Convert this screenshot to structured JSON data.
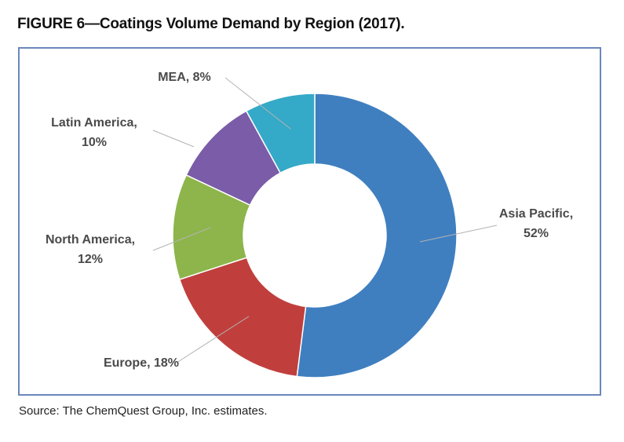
{
  "figure_title": "FIGURE 6—Coatings Volume Demand by Region (2017).",
  "source": "Source: The ChemQuest Group, Inc. estimates.",
  "chart_data": {
    "type": "pie",
    "variant": "donut",
    "title": "FIGURE 6—Coatings Volume Demand by Region (2017).",
    "unit": "%",
    "slices": [
      {
        "name": "Asia Pacific",
        "value": 52,
        "color": "#3f7fc0",
        "label_lines": [
          "Asia Pacific,",
          "52%"
        ]
      },
      {
        "name": "Europe",
        "value": 18,
        "color": "#c03f3c",
        "label_lines": [
          "Europe, 18%"
        ]
      },
      {
        "name": "North America",
        "value": 12,
        "color": "#8db54b",
        "label_lines": [
          "North America,",
          "12%"
        ]
      },
      {
        "name": "Latin America",
        "value": 10,
        "color": "#7a5ca8",
        "label_lines": [
          "Latin America,",
          "10%"
        ]
      },
      {
        "name": "MEA",
        "value": 8,
        "color": "#35a9c8",
        "label_lines": [
          "MEA, 8%"
        ]
      }
    ]
  }
}
